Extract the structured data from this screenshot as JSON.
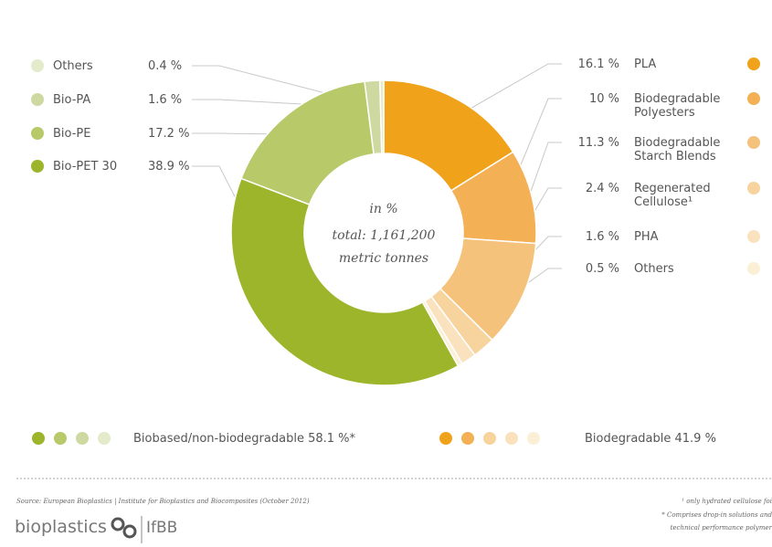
{
  "chart_data": {
    "type": "pie",
    "center_text": [
      "in %",
      "total: 1,161,200",
      "metric tonnes"
    ],
    "slices": [
      {
        "group": "biodegradable",
        "name": "PLA",
        "value_label": "16.1 %",
        "value": 16.1,
        "color": "#f0a21a"
      },
      {
        "group": "biodegradable",
        "name": "Biodegradable Polyesters",
        "lines": [
          "Biodegradable",
          "Polyesters"
        ],
        "value_label": "10 %",
        "value": 10,
        "color": "#f3b055"
      },
      {
        "group": "biodegradable",
        "name": "Biodegradable Starch Blends",
        "lines": [
          "Biodegradable",
          "Starch Blends"
        ],
        "value_label": "11.3 %",
        "value": 11.3,
        "color": "#f5c27b"
      },
      {
        "group": "biodegradable",
        "name": "Regenerated Cellulose",
        "lines": [
          "Regenerated",
          "Cellulose¹"
        ],
        "value_label": "2.4 %",
        "value": 2.4,
        "color": "#f7d49d"
      },
      {
        "group": "biodegradable",
        "name": "PHA",
        "value_label": "1.6 %",
        "value": 1.6,
        "color": "#f9e2bd"
      },
      {
        "group": "biodegradable",
        "name": "Others",
        "value_label": "0.5 %",
        "value": 0.5,
        "color": "#fbefd6"
      },
      {
        "group": "biobased",
        "name": "Bio-PET 30",
        "value_label": "38.9 %",
        "value": 38.9,
        "color": "#9cb52a"
      },
      {
        "group": "biobased",
        "name": "Bio-PE",
        "value_label": "17.2 %",
        "value": 17.2,
        "color": "#b8c96a"
      },
      {
        "group": "biobased",
        "name": "Bio-PA",
        "value_label": "1.6 %",
        "value": 1.6,
        "color": "#cdd9a0"
      },
      {
        "group": "biobased",
        "name": "Others",
        "value_label": "0.4 %",
        "value": 0.4,
        "color": "#e4ebca"
      }
    ],
    "legend_groups": [
      {
        "label": "Biobased/non-biodegradable 58.1 %*",
        "colors": [
          "#9cb52a",
          "#b8c96a",
          "#cdd9a0",
          "#e4ebca"
        ]
      },
      {
        "label": "Biodegradable 41.9 %",
        "colors": [
          "#f0a21a",
          "#f3b055",
          "#f7d49d",
          "#f9e2bd",
          "#fbefd6"
        ]
      }
    ]
  },
  "footer": {
    "source": "Source: European Bioplastics | Institute for Bioplastics and Biocomposites (October 2012)",
    "notes": [
      "¹ only hydrated cellulose foi",
      "* Comprises drop-in solutions and",
      "technical performance polymer"
    ],
    "logo_bioplastics": "bioplastics",
    "logo_ifbb": "IfBB"
  }
}
